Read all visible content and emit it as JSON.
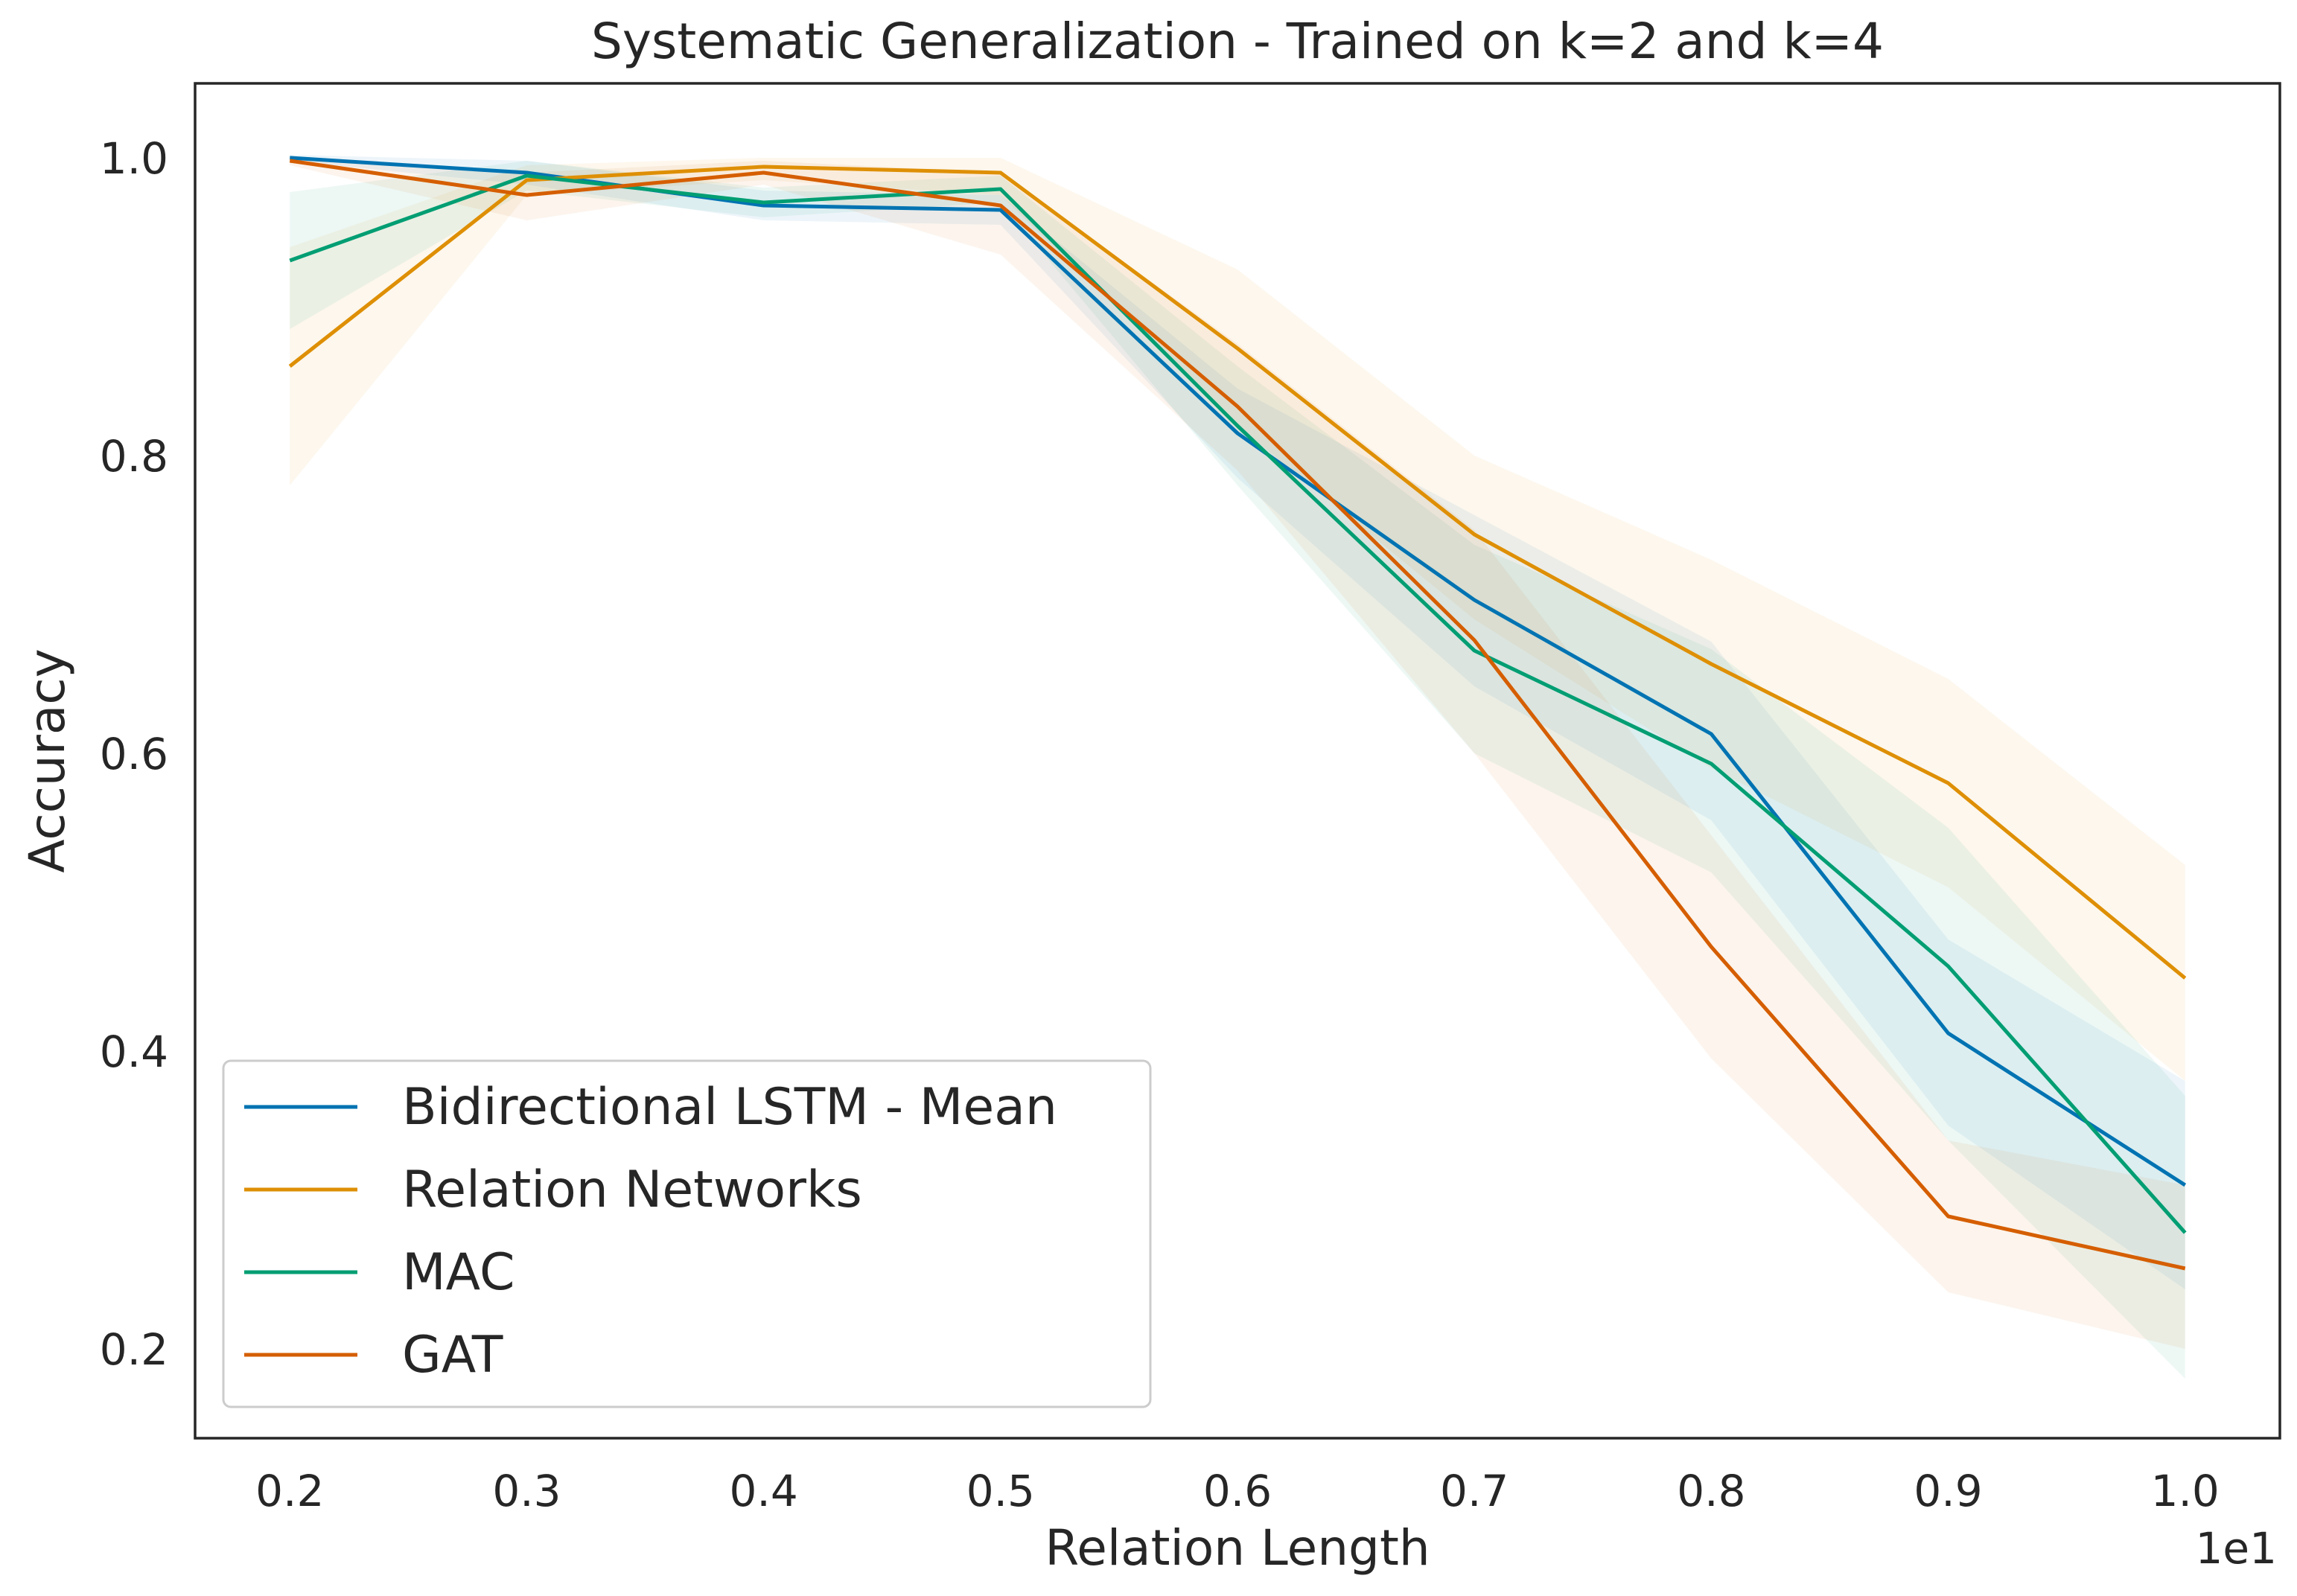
{
  "chart_data": {
    "type": "line",
    "title": "Systematic Generalization - Trained on k=2 and k=4",
    "xlabel": "Relation Length",
    "ylabel": "Accuracy",
    "x_offset_label": "1e1",
    "x": [
      0.2,
      0.3,
      0.4,
      0.5,
      0.6,
      0.7,
      0.8,
      0.9,
      1.0
    ],
    "x_tick_labels": [
      "0.2",
      "0.3",
      "0.4",
      "0.5",
      "0.6",
      "0.7",
      "0.8",
      "0.9",
      "1.0"
    ],
    "y_ticks": [
      0.2,
      0.4,
      0.6,
      0.8,
      1.0
    ],
    "y_tick_labels": [
      "0.2",
      "0.4",
      "0.6",
      "0.8",
      "1.0"
    ],
    "xlim": [
      0.16,
      1.04
    ],
    "ylim": [
      0.14,
      1.05
    ],
    "grid": false,
    "legend_position": "lower-left",
    "series": [
      {
        "name": "Bidirectional LSTM - Mean",
        "color": "#0173b2",
        "values": [
          1.0,
          0.99,
          0.968,
          0.965,
          0.815,
          0.703,
          0.613,
          0.412,
          0.31
        ],
        "lower": [
          0.998,
          0.982,
          0.958,
          0.955,
          0.785,
          0.645,
          0.555,
          0.35,
          0.24
        ],
        "upper": [
          1.002,
          0.998,
          0.978,
          0.975,
          0.845,
          0.76,
          0.675,
          0.475,
          0.38
        ]
      },
      {
        "name": "Relation Networks",
        "color": "#de8f05",
        "values": [
          0.86,
          0.985,
          0.994,
          0.99,
          0.872,
          0.747,
          0.66,
          0.58,
          0.449
        ],
        "lower": [
          0.78,
          0.975,
          0.985,
          0.975,
          0.82,
          0.69,
          0.59,
          0.51,
          0.38
        ],
        "upper": [
          0.94,
          0.995,
          1.0,
          1.0,
          0.925,
          0.8,
          0.73,
          0.65,
          0.525
        ]
      },
      {
        "name": "MAC",
        "color": "#029e73",
        "values": [
          0.931,
          0.988,
          0.97,
          0.979,
          0.82,
          0.669,
          0.593,
          0.457,
          0.278
        ],
        "lower": [
          0.885,
          0.978,
          0.96,
          0.97,
          0.78,
          0.6,
          0.52,
          0.34,
          0.18
        ],
        "upper": [
          0.977,
          0.998,
          0.98,
          0.988,
          0.86,
          0.74,
          0.67,
          0.55,
          0.37
        ]
      },
      {
        "name": "GAT",
        "color": "#d55e00",
        "values": [
          0.998,
          0.975,
          0.99,
          0.968,
          0.833,
          0.676,
          0.47,
          0.289,
          0.254
        ],
        "lower": [
          0.995,
          0.958,
          0.982,
          0.935,
          0.79,
          0.6,
          0.395,
          0.238,
          0.2
        ],
        "upper": [
          1.001,
          0.99,
          0.998,
          0.99,
          0.875,
          0.75,
          0.545,
          0.34,
          0.31
        ]
      }
    ]
  }
}
